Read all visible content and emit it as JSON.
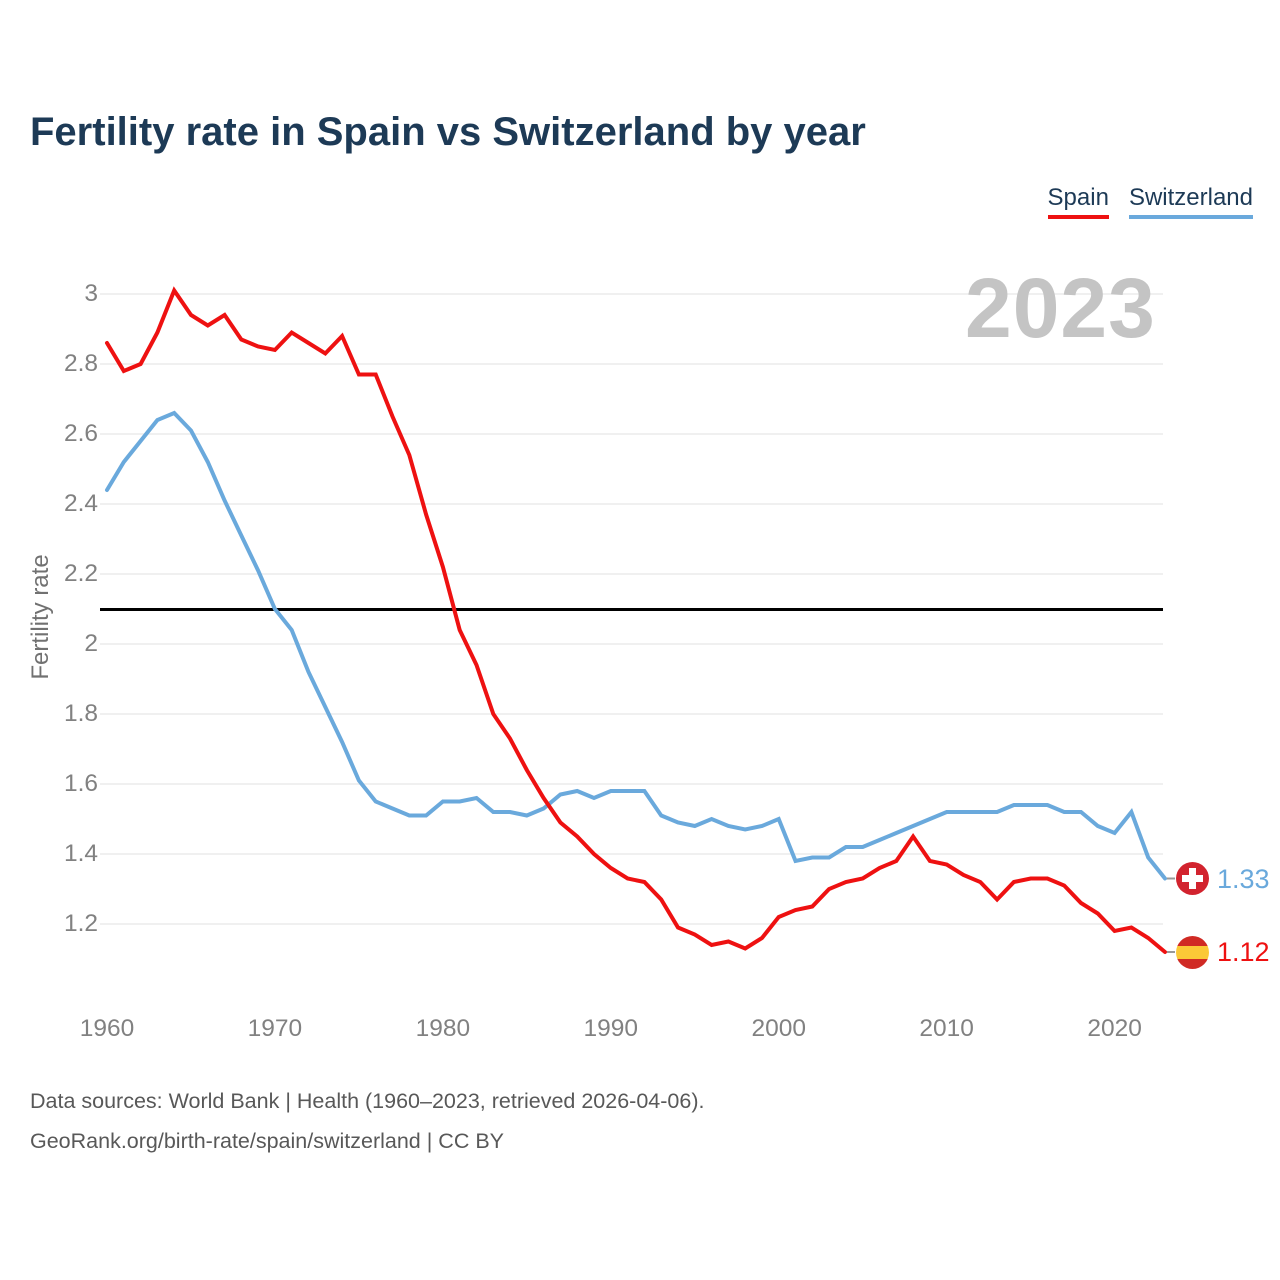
{
  "title": "Fertility rate in Spain vs Switzerland by year",
  "watermark": "2023",
  "legend": {
    "items": [
      {
        "label": "Spain",
        "color": "#ee1111"
      },
      {
        "label": "Switzerland",
        "color": "#6aa9dc"
      }
    ]
  },
  "chart_data": {
    "type": "line",
    "title": "Fertility rate in Spain vs Switzerland by year",
    "xlabel": "",
    "ylabel": "Fertility rate",
    "xlim": [
      1960,
      2023
    ],
    "ylim": [
      1.05,
      3.05
    ],
    "grid": "horizontal",
    "legend_position": "top-right",
    "x_ticks": [
      1960,
      1970,
      1980,
      1990,
      2000,
      2010,
      2020
    ],
    "y_ticks": [
      "3",
      "2.8",
      "2.6",
      "2.4",
      "2.2",
      "2",
      "1.8",
      "1.6",
      "1.4",
      "1.2"
    ],
    "reference_line": {
      "value": 2.1,
      "color": "#000000"
    },
    "years": [
      1960,
      1961,
      1962,
      1963,
      1964,
      1965,
      1966,
      1967,
      1968,
      1969,
      1970,
      1971,
      1972,
      1973,
      1974,
      1975,
      1976,
      1977,
      1978,
      1979,
      1980,
      1981,
      1982,
      1983,
      1984,
      1985,
      1986,
      1987,
      1988,
      1989,
      1990,
      1991,
      1992,
      1993,
      1994,
      1995,
      1996,
      1997,
      1998,
      1999,
      2000,
      2001,
      2002,
      2003,
      2004,
      2005,
      2006,
      2007,
      2008,
      2009,
      2010,
      2011,
      2012,
      2013,
      2014,
      2015,
      2016,
      2017,
      2018,
      2019,
      2020,
      2021,
      2022,
      2023
    ],
    "series": [
      {
        "name": "Spain",
        "color": "#ee1111",
        "flag": "spain",
        "end_label": "1.12",
        "values": [
          2.86,
          2.78,
          2.8,
          2.89,
          3.01,
          2.94,
          2.91,
          2.94,
          2.87,
          2.85,
          2.84,
          2.89,
          2.86,
          2.83,
          2.88,
          2.77,
          2.77,
          2.65,
          2.54,
          2.37,
          2.22,
          2.04,
          1.94,
          1.8,
          1.73,
          1.64,
          1.56,
          1.49,
          1.45,
          1.4,
          1.36,
          1.33,
          1.32,
          1.27,
          1.19,
          1.17,
          1.14,
          1.15,
          1.13,
          1.16,
          1.22,
          1.24,
          1.25,
          1.3,
          1.32,
          1.33,
          1.36,
          1.38,
          1.45,
          1.38,
          1.37,
          1.34,
          1.32,
          1.27,
          1.32,
          1.33,
          1.33,
          1.31,
          1.26,
          1.23,
          1.18,
          1.19,
          1.16,
          1.12
        ]
      },
      {
        "name": "Switzerland",
        "color": "#6aa9dc",
        "flag": "swiss",
        "end_label": "1.33",
        "values": [
          2.44,
          2.52,
          2.58,
          2.64,
          2.66,
          2.61,
          2.52,
          2.41,
          2.31,
          2.21,
          2.1,
          2.04,
          1.92,
          1.82,
          1.72,
          1.61,
          1.55,
          1.53,
          1.51,
          1.51,
          1.55,
          1.55,
          1.56,
          1.52,
          1.52,
          1.51,
          1.53,
          1.57,
          1.58,
          1.56,
          1.58,
          1.58,
          1.58,
          1.51,
          1.49,
          1.48,
          1.5,
          1.48,
          1.47,
          1.48,
          1.5,
          1.38,
          1.39,
          1.39,
          1.42,
          1.42,
          1.44,
          1.46,
          1.48,
          1.5,
          1.52,
          1.52,
          1.52,
          1.52,
          1.54,
          1.54,
          1.54,
          1.52,
          1.52,
          1.48,
          1.46,
          1.52,
          1.39,
          1.33
        ]
      }
    ]
  },
  "footer": {
    "line1": "Data sources: World Bank | Health (1960–2023, retrieved 2026-04-06).",
    "line2": "GeoRank.org/birth-rate/spain/switzerland | CC BY"
  }
}
